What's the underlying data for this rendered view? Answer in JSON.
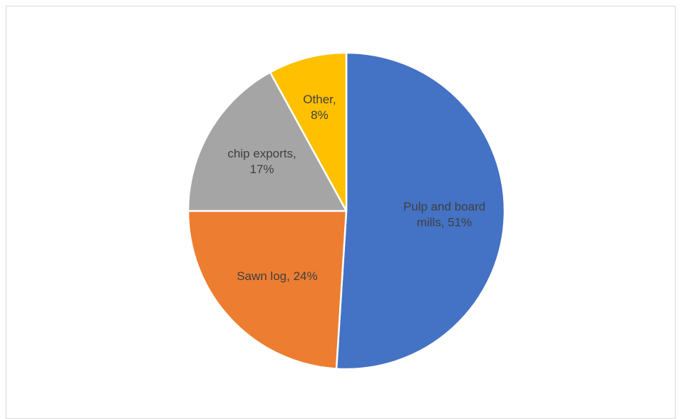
{
  "chart_data": {
    "type": "pie",
    "title": "",
    "slices": [
      {
        "label": "Pulp and board mills",
        "value": 51,
        "display_text": [
          "Pulp and board",
          "mills, 51%"
        ],
        "color": "#4472C4"
      },
      {
        "label": "Sawn log",
        "value": 24,
        "display_text": [
          "Sawn log, 24%"
        ],
        "color": "#ED7D31"
      },
      {
        "label": "chip exports",
        "value": 17,
        "display_text": [
          "chip exports,",
          "17%"
        ],
        "color": "#A5A5A5"
      },
      {
        "label": "Other",
        "value": 8,
        "display_text": [
          "Other,",
          "8%"
        ],
        "color": "#FFC000"
      }
    ],
    "start_angle_deg": 0,
    "direction": "clockwise",
    "legend": "none",
    "data_labels": "inside"
  }
}
